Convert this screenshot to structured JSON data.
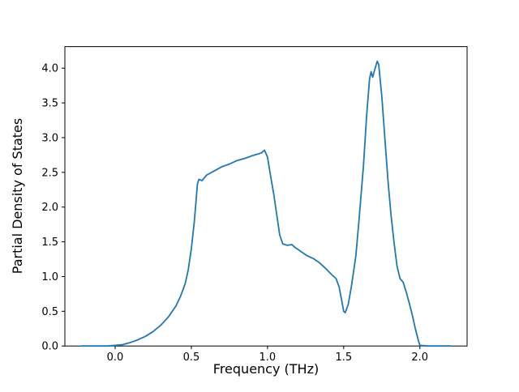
{
  "chart_data": {
    "type": "line",
    "title": "",
    "xlabel": "Frequency (THz)",
    "ylabel": "Partial Density of States",
    "xlim": [
      -0.33,
      2.31
    ],
    "ylim": [
      0,
      4.31
    ],
    "xticks": [
      0.0,
      0.5,
      1.0,
      1.5,
      2.0
    ],
    "yticks": [
      0.0,
      0.5,
      1.0,
      1.5,
      2.0,
      2.5,
      3.0,
      3.5,
      4.0
    ],
    "grid": false,
    "legend": "none",
    "line_color": "#1f77b4",
    "background_color": "#ffffff",
    "series": [
      {
        "name": "PDOS",
        "x": [
          -0.22,
          -0.15,
          -0.1,
          -0.05,
          0.0,
          0.05,
          0.1,
          0.15,
          0.2,
          0.25,
          0.3,
          0.35,
          0.4,
          0.43,
          0.46,
          0.48,
          0.5,
          0.52,
          0.54,
          0.55,
          0.57,
          0.6,
          0.65,
          0.7,
          0.75,
          0.8,
          0.85,
          0.9,
          0.93,
          0.96,
          0.98,
          1.0,
          1.02,
          1.04,
          1.06,
          1.08,
          1.1,
          1.13,
          1.16,
          1.18,
          1.22,
          1.26,
          1.3,
          1.34,
          1.38,
          1.42,
          1.45,
          1.47,
          1.49,
          1.5,
          1.51,
          1.53,
          1.55,
          1.58,
          1.6,
          1.63,
          1.65,
          1.67,
          1.68,
          1.69,
          1.7,
          1.72,
          1.73,
          1.75,
          1.77,
          1.79,
          1.81,
          1.83,
          1.85,
          1.87,
          1.89,
          1.91,
          1.93,
          1.95,
          1.97,
          1.99,
          2.0,
          2.05,
          2.1,
          2.2
        ],
        "y": [
          0,
          0,
          0,
          0,
          0.01,
          0.02,
          0.05,
          0.09,
          0.14,
          0.21,
          0.3,
          0.42,
          0.58,
          0.72,
          0.9,
          1.1,
          1.4,
          1.8,
          2.33,
          2.4,
          2.38,
          2.46,
          2.52,
          2.58,
          2.62,
          2.67,
          2.7,
          2.74,
          2.76,
          2.78,
          2.82,
          2.72,
          2.45,
          2.2,
          1.9,
          1.6,
          1.47,
          1.45,
          1.46,
          1.42,
          1.36,
          1.3,
          1.26,
          1.2,
          1.12,
          1.03,
          0.97,
          0.85,
          0.62,
          0.5,
          0.48,
          0.6,
          0.85,
          1.3,
          1.8,
          2.6,
          3.3,
          3.85,
          3.95,
          3.87,
          3.95,
          4.1,
          4.05,
          3.6,
          3.0,
          2.4,
          1.9,
          1.5,
          1.15,
          0.97,
          0.92,
          0.78,
          0.62,
          0.45,
          0.25,
          0.08,
          0.01,
          0.0,
          0.0,
          0.0
        ]
      }
    ]
  }
}
